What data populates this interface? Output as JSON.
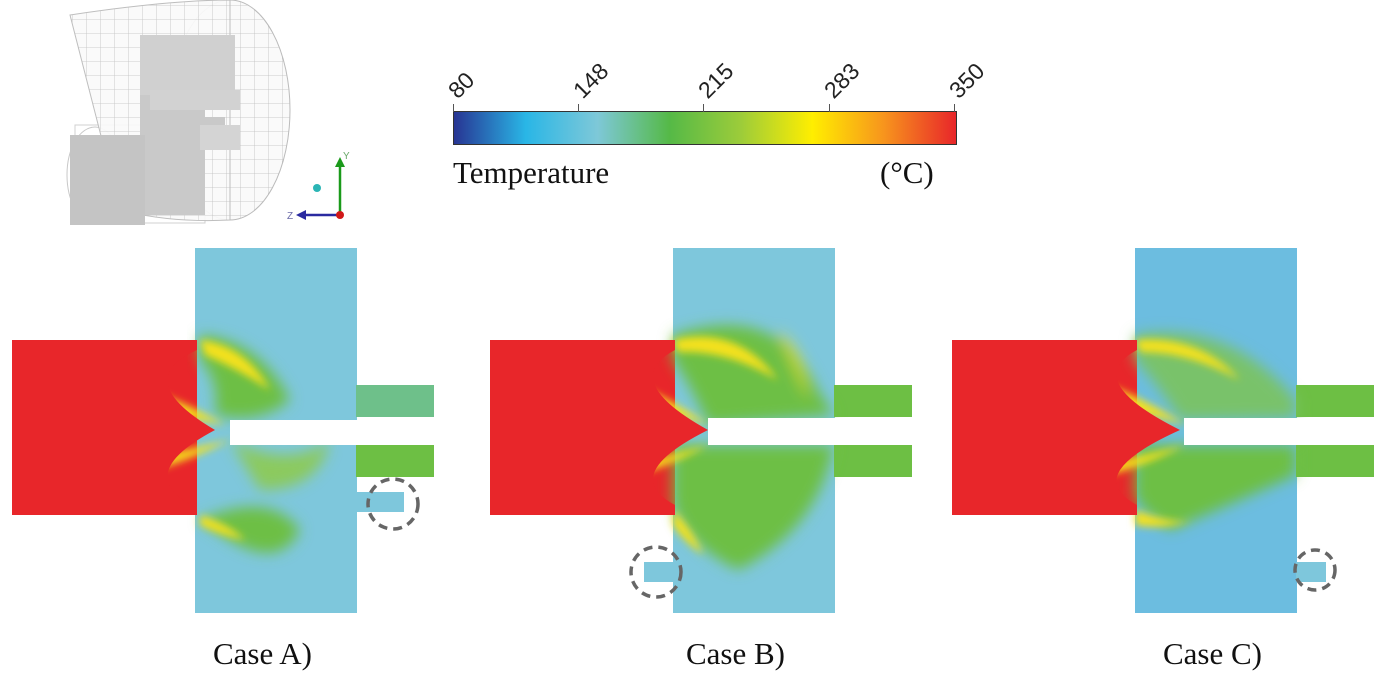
{
  "colorbar": {
    "title": "Temperature",
    "unit": "(°C)",
    "ticks": [
      "80",
      "148",
      "215",
      "283",
      "350"
    ],
    "stops": [
      "#283593",
      "#29b6e6",
      "#7ec8d8",
      "#55b947",
      "#9ccc3a",
      "#ffee00",
      "#f7941d",
      "#e8262a"
    ]
  },
  "axes_triad": {
    "y_label": "Y",
    "z_label": "Z"
  },
  "cases": [
    {
      "label": "Case A)"
    },
    {
      "label": "Case B)"
    },
    {
      "label": "Case C)"
    }
  ],
  "colors": {
    "hot": "#e8262a",
    "warm": "#f4e11a",
    "mid": "#6dbf44",
    "cool": "#79c6dc",
    "outline": "#666666"
  }
}
